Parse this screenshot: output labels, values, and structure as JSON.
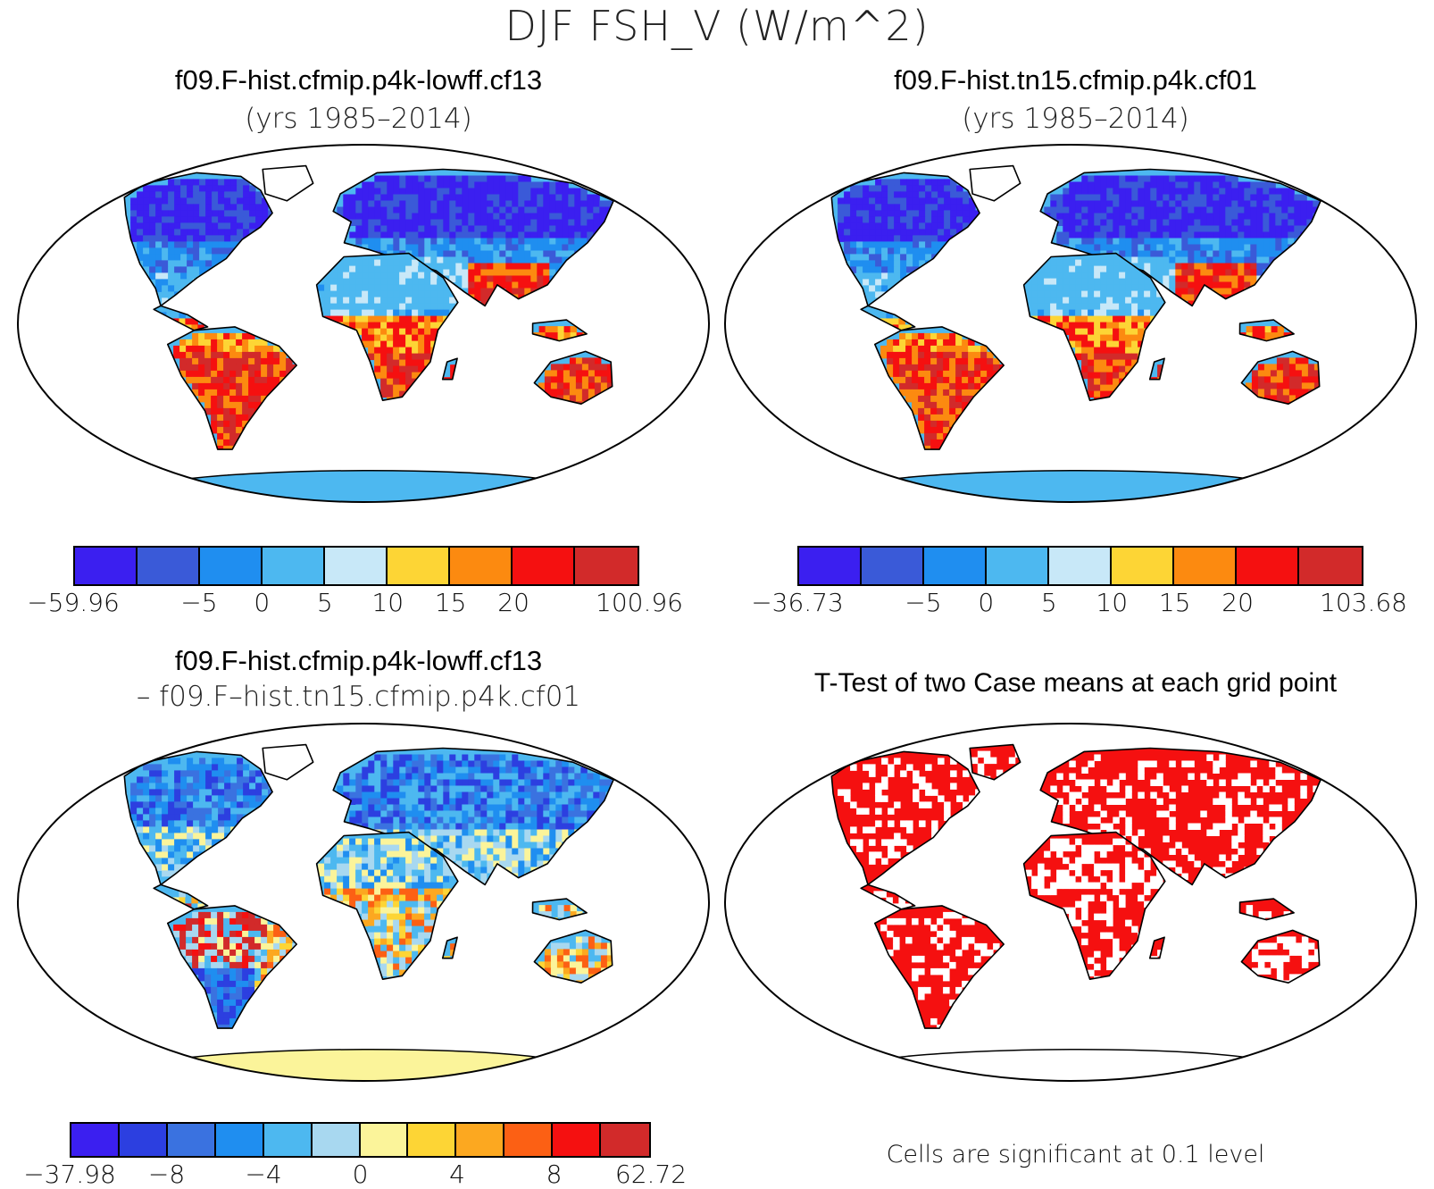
{
  "figure": {
    "title": "DJF FSH_V (W/m^2)"
  },
  "panels": [
    {
      "id": "case1",
      "title": "f09.F-hist.cfmip.p4k-lowff.cf13",
      "subtitle": "(yrs 1985–2014)",
      "field": "sensible-heat"
    },
    {
      "id": "case2",
      "title": "f09.F-hist.tn15.cfmip.p4k.cf01",
      "subtitle": "(yrs 1985–2014)",
      "field": "sensible-heat"
    },
    {
      "id": "difference",
      "title": "f09.F-hist.cfmip.p4k-lowff.cf13",
      "subtitle": "– f09.F–hist.tn15.cfmip.p4k.cf01",
      "field": "difference"
    },
    {
      "id": "ttest",
      "title": "T-Test of two Case means at each grid point",
      "note": "Cells are significant at 0.1 level",
      "field": "significance"
    }
  ],
  "colorbars": {
    "case1": {
      "colors": [
        "#3b1ff0",
        "#3a5ad8",
        "#1f8ef0",
        "#4db8f0",
        "#c8e8f8",
        "#fdd535",
        "#fc8a10",
        "#f51010",
        "#d22a2a"
      ],
      "labels": [
        "−59.96",
        "−5",
        "0",
        "5",
        "10",
        "15",
        "20",
        "100.96"
      ],
      "label_positions": [
        0,
        2,
        3,
        4,
        5,
        6,
        7,
        9
      ]
    },
    "case2": {
      "colors": [
        "#3b1ff0",
        "#3a5ad8",
        "#1f8ef0",
        "#4db8f0",
        "#c8e8f8",
        "#fdd535",
        "#fc8a10",
        "#f51010",
        "#d22a2a"
      ],
      "labels": [
        "−36.73",
        "−5",
        "0",
        "5",
        "10",
        "15",
        "20",
        "103.68"
      ],
      "label_positions": [
        0,
        2,
        3,
        4,
        5,
        6,
        7,
        9
      ]
    },
    "difference": {
      "colors": [
        "#3b1ff0",
        "#2c3fe0",
        "#3a72e0",
        "#1f8ef0",
        "#4db8f0",
        "#a8d8f0",
        "#fbf49a",
        "#fdd535",
        "#fca820",
        "#fc6014",
        "#f51010",
        "#d22a2a"
      ],
      "labels": [
        "−37.98",
        "−8",
        "−4",
        "0",
        "4",
        "8",
        "62.72"
      ],
      "label_positions": [
        0,
        2,
        4,
        6,
        8,
        10,
        12
      ]
    }
  },
  "map_colors": {
    "ocean": "#ffffff",
    "coast": "#000000",
    "antarctica": "#4db8f0",
    "antarctica_diff": "#fbf49a",
    "sig": "#f51010"
  }
}
